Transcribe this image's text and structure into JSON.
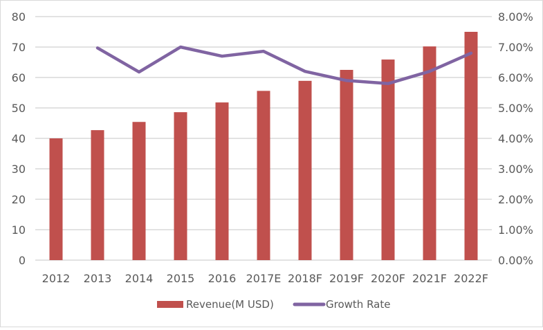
{
  "chart_data": {
    "type": "bar",
    "title": "",
    "categories": [
      "2012",
      "2013",
      "2014",
      "2015",
      "2016",
      "2017E",
      "2018F",
      "2019F",
      "2020F",
      "2021F",
      "2022F"
    ],
    "series": [
      {
        "name": "Revenue(M USD)",
        "type": "bar",
        "axis": "left",
        "color": "#c0504d",
        "values": [
          40,
          42.7,
          45.4,
          48.6,
          51.8,
          55.6,
          58.9,
          62.5,
          65.9,
          70.2,
          75
        ]
      },
      {
        "name": "Growth Rate",
        "type": "line",
        "axis": "right",
        "color": "#8064a2",
        "values": [
          null,
          0.0697,
          0.0618,
          0.07,
          0.067,
          0.0686,
          0.062,
          0.059,
          0.058,
          0.062,
          0.068
        ]
      }
    ],
    "left_axis": {
      "min": 0,
      "max": 80,
      "ticks": [
        "0",
        "10",
        "20",
        "30",
        "40",
        "50",
        "60",
        "70",
        "80"
      ]
    },
    "right_axis": {
      "min": 0,
      "max": 0.08,
      "ticks": [
        "0.00%",
        "1.00%",
        "2.00%",
        "3.00%",
        "4.00%",
        "5.00%",
        "6.00%",
        "7.00%",
        "8.00%"
      ]
    },
    "grid": true,
    "legend_position": "bottom",
    "legend": [
      "Revenue(M USD)",
      "Growth Rate"
    ],
    "gridline_color": "#d9d9d9"
  }
}
